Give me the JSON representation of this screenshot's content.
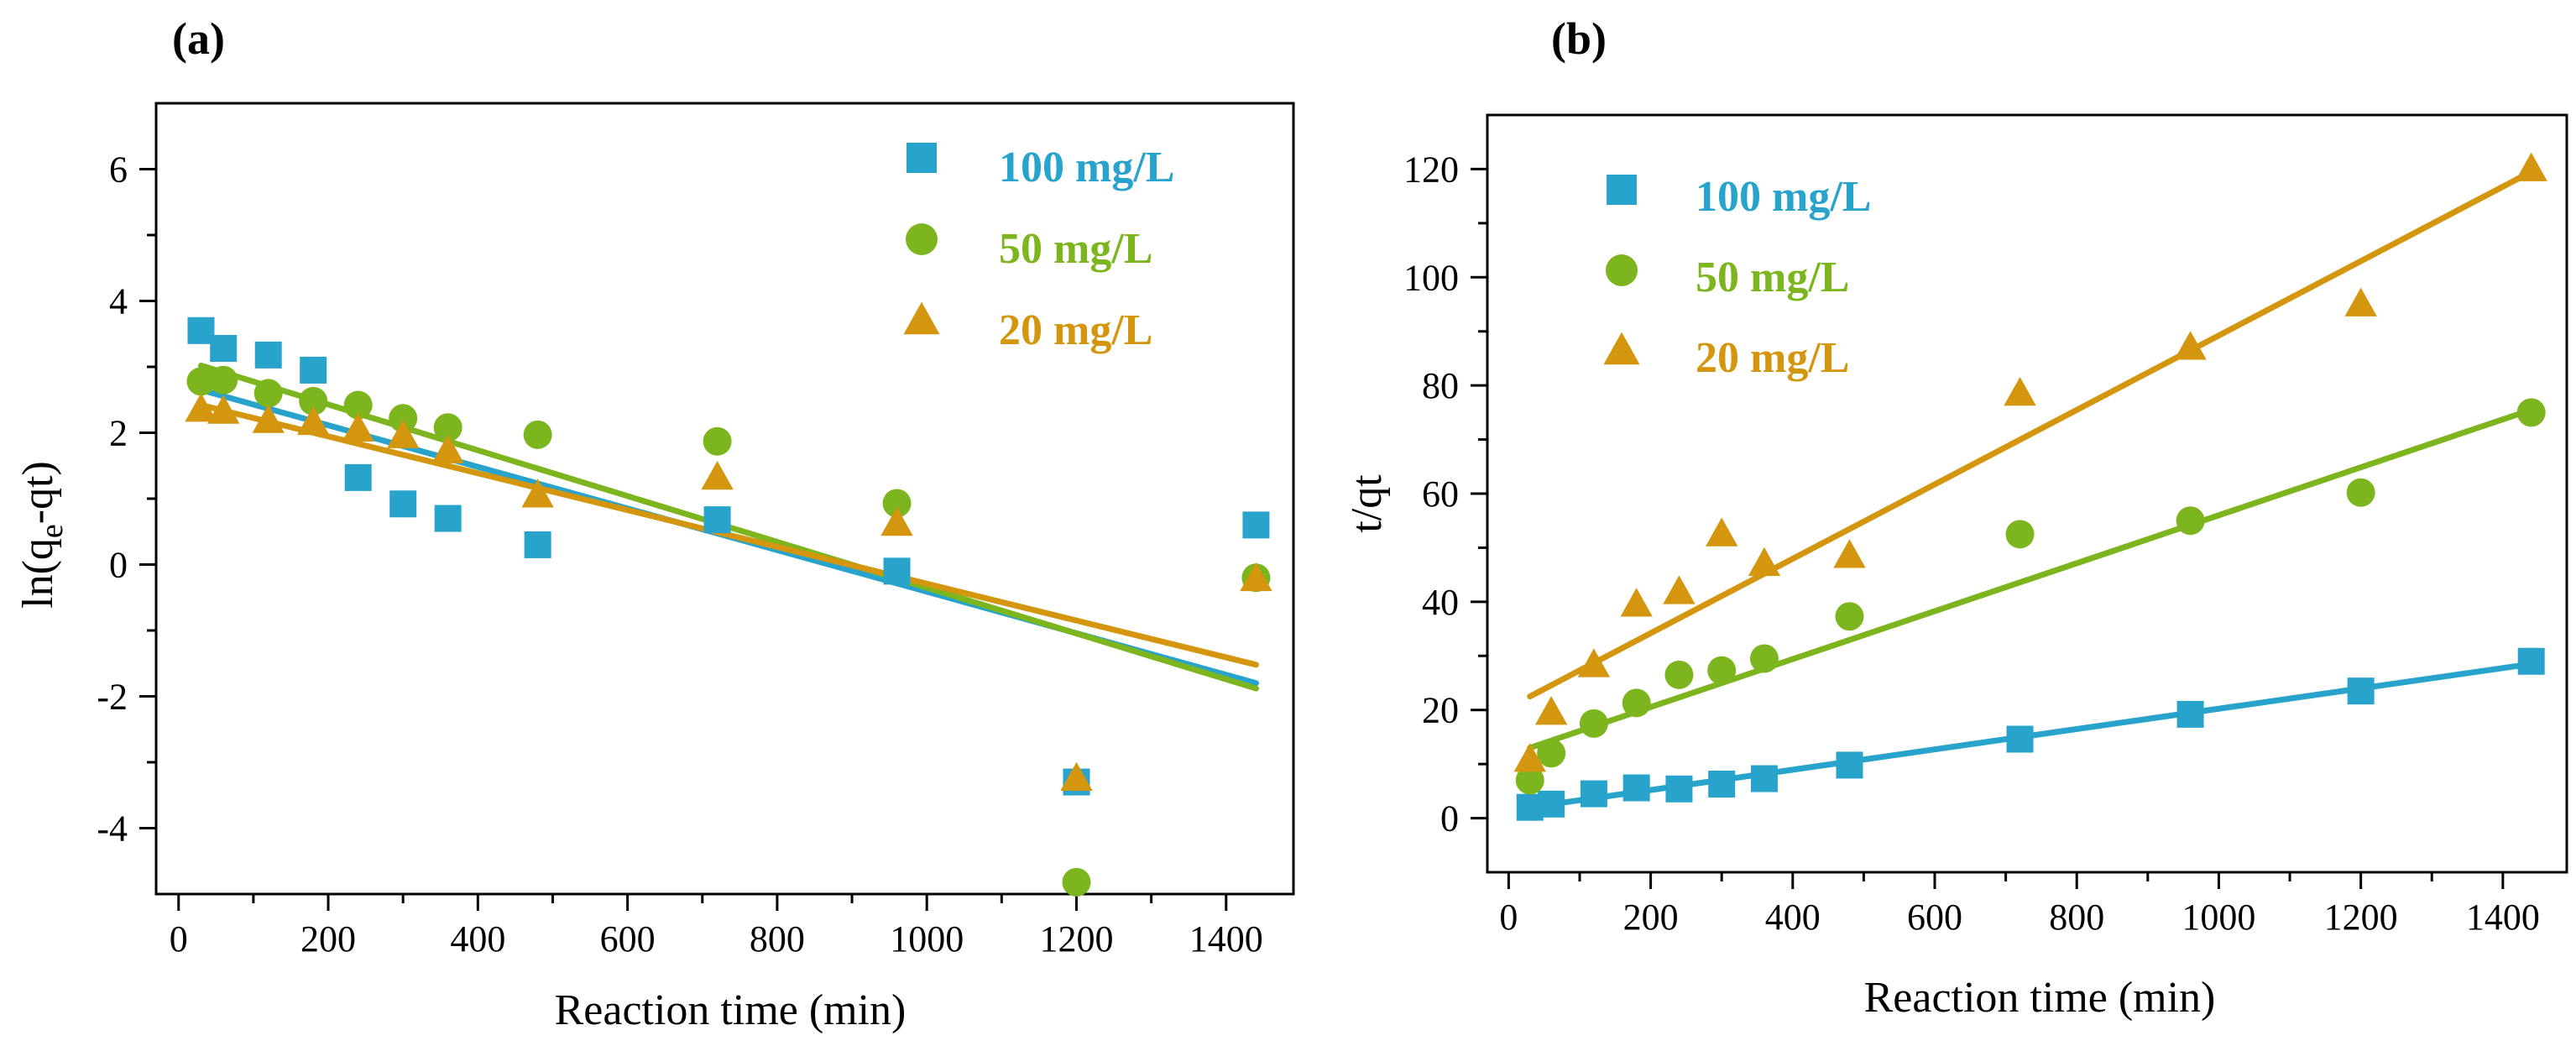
{
  "colors": {
    "series_100": "#27a3cc",
    "series_50": "#7cb51e",
    "series_20": "#d4960e"
  },
  "chart_data": [
    {
      "type": "scatter",
      "panel_label": "(a)",
      "xlabel": "Reaction time (min)",
      "ylabel_main": "ln(q",
      "ylabel_sub": "e",
      "ylabel_tail": "-qt)",
      "xlim": [
        -30,
        1490
      ],
      "ylim": [
        -5,
        7
      ],
      "xticks": [
        0,
        200,
        400,
        600,
        800,
        1000,
        1200,
        1400
      ],
      "xtick_labels": [
        "0",
        "200",
        "400",
        "600",
        "800",
        "1000",
        "1200",
        "1400"
      ],
      "yticks": [
        -4,
        -2,
        0,
        2,
        4,
        6
      ],
      "ytick_labels": [
        "-4",
        "-2",
        "0",
        "2",
        "4",
        "6"
      ],
      "legend_position": "top-right",
      "series": [
        {
          "name": "100 mg/L",
          "marker": "square",
          "color_key": "series_100",
          "x": [
            30,
            60,
            120,
            180,
            240,
            300,
            360,
            480,
            720,
            960,
            1200,
            1440
          ],
          "y": [
            3.55,
            3.28,
            3.18,
            2.95,
            1.32,
            0.92,
            0.7,
            0.3,
            0.68,
            -0.1,
            -3.3,
            0.6
          ],
          "fit": {
            "x": [
              30,
              1440
            ],
            "y": [
              2.65,
              -1.8
            ]
          }
        },
        {
          "name": "50 mg/L",
          "marker": "circle",
          "color_key": "series_50",
          "x": [
            30,
            60,
            120,
            180,
            240,
            300,
            360,
            480,
            720,
            960,
            1200,
            1440
          ],
          "y": [
            2.78,
            2.8,
            2.6,
            2.48,
            2.42,
            2.22,
            2.08,
            1.97,
            1.87,
            0.93,
            -4.82,
            -0.2
          ],
          "fit": {
            "x": [
              30,
              1440
            ],
            "y": [
              3.02,
              -1.88
            ]
          }
        },
        {
          "name": "20 mg/L",
          "marker": "triangle",
          "color_key": "series_20",
          "x": [
            30,
            60,
            120,
            180,
            240,
            300,
            360,
            480,
            720,
            960,
            1200,
            1440
          ],
          "y": [
            2.35,
            2.32,
            2.18,
            2.15,
            2.05,
            1.95,
            1.72,
            1.05,
            1.32,
            0.62,
            -3.25,
            -0.22
          ],
          "fit": {
            "x": [
              30,
              1440
            ],
            "y": [
              2.42,
              -1.52
            ]
          }
        }
      ]
    },
    {
      "type": "scatter",
      "panel_label": "(b)",
      "xlabel": "Reaction time (min)",
      "ylabel": "t/qt",
      "xlim": [
        -30,
        1490
      ],
      "ylim": [
        -10,
        130
      ],
      "xticks": [
        0,
        200,
        400,
        600,
        800,
        1000,
        1200,
        1400
      ],
      "xtick_labels": [
        "0",
        "200",
        "400",
        "600",
        "800",
        "1000",
        "1200",
        "1400"
      ],
      "yticks": [
        0,
        20,
        40,
        60,
        80,
        100,
        120
      ],
      "ytick_labels": [
        "0",
        "20",
        "40",
        "60",
        "80",
        "100",
        "120"
      ],
      "legend_position": "top-left",
      "series": [
        {
          "name": "100 mg/L",
          "marker": "square",
          "color_key": "series_100",
          "x": [
            30,
            60,
            120,
            180,
            240,
            300,
            360,
            480,
            720,
            960,
            1200,
            1440
          ],
          "y": [
            2.0,
            2.6,
            4.5,
            5.6,
            5.4,
            6.3,
            7.3,
            9.8,
            14.6,
            19.2,
            23.5,
            29.0
          ],
          "fit": {
            "x": [
              30,
              1440
            ],
            "y": [
              2.0,
              28.5
            ]
          }
        },
        {
          "name": "50 mg/L",
          "marker": "circle",
          "color_key": "series_50",
          "x": [
            30,
            60,
            120,
            180,
            240,
            300,
            360,
            480,
            720,
            960,
            1200,
            1440
          ],
          "y": [
            7.0,
            12.0,
            17.5,
            21.3,
            26.5,
            27.3,
            29.5,
            37.3,
            52.5,
            55.0,
            60.2,
            75.0
          ],
          "fit": {
            "x": [
              30,
              1440
            ],
            "y": [
              13.0,
              75.5
            ]
          }
        },
        {
          "name": "20 mg/L",
          "marker": "triangle",
          "color_key": "series_20",
          "x": [
            30,
            60,
            120,
            180,
            240,
            300,
            360,
            480,
            720,
            960,
            1200,
            1440
          ],
          "y": [
            10.8,
            19.5,
            28.3,
            39.5,
            41.8,
            52.5,
            47.0,
            48.5,
            78.5,
            87.0,
            95.0,
            120.0
          ],
          "fit": {
            "x": [
              30,
              1440
            ],
            "y": [
              22.5,
              119.5
            ]
          }
        }
      ]
    }
  ]
}
